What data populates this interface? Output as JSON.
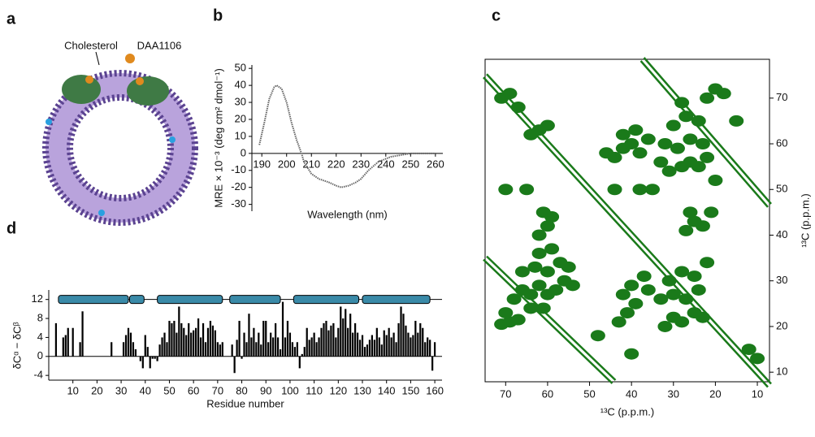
{
  "illustration": {
    "panel": "a",
    "labels": [
      "Cholesterol",
      "DAA1106"
    ]
  },
  "chart_data": [
    {
      "type": "line",
      "panel": "b",
      "xlabel": "Wavelength (nm)",
      "ylabel": "MRE × 10⁻³ (deg cm² dmol⁻¹)",
      "x": [
        189,
        191,
        193,
        195,
        196,
        198,
        200,
        202,
        204,
        206,
        207,
        210,
        213,
        217,
        220,
        222,
        225,
        228,
        230,
        233,
        237,
        242,
        250,
        255,
        260
      ],
      "values": [
        5,
        18,
        32,
        39,
        40,
        38,
        30,
        18,
        8,
        0,
        -5,
        -12,
        -15,
        -17,
        -19,
        -20,
        -19,
        -17,
        -15,
        -10,
        -5,
        -2,
        0,
        0,
        0
      ],
      "color": "#666666",
      "xlim": [
        186,
        263
      ],
      "ylim": [
        -34,
        52
      ],
      "xticks": [
        190,
        200,
        210,
        220,
        230,
        240,
        250,
        260
      ],
      "yticks": [
        -30,
        -20,
        -10,
        0,
        10,
        20,
        30,
        40,
        50
      ]
    },
    {
      "type": "scatter",
      "panel": "c",
      "xlabel": "¹³C (p.p.m.)",
      "ylabel": "¹³C (p.p.m.)",
      "color": "#1a7a1a",
      "xlim": [
        74.9,
        7.1
      ],
      "ylim": [
        7.9,
        78.5
      ],
      "xticks": [
        70,
        60,
        50,
        40,
        30,
        20,
        10
      ],
      "yticks": [
        10,
        20,
        30,
        40,
        50,
        60,
        70
      ],
      "x": [
        71,
        69,
        67,
        70,
        68,
        66,
        64,
        62,
        60,
        58,
        56,
        54,
        66,
        63,
        60,
        57,
        55,
        62,
        59,
        64,
        61,
        62,
        60,
        59,
        61,
        43,
        41,
        39,
        42,
        40,
        36,
        37,
        32,
        30,
        28,
        25,
        23,
        33,
        30,
        27,
        24,
        31,
        28,
        25,
        22,
        27,
        25,
        23,
        21,
        26,
        46,
        44,
        42,
        40,
        38,
        42,
        39,
        36,
        33,
        31,
        28,
        26,
        24,
        22,
        32,
        29,
        26,
        23,
        30,
        27,
        24,
        28,
        71,
        69,
        67,
        22,
        20,
        18,
        64,
        62,
        60,
        12,
        10,
        20,
        35,
        15,
        40,
        48,
        70,
        65,
        44,
        38
      ],
      "values": [
        20.5,
        21,
        21.5,
        23,
        26,
        28,
        27,
        29,
        27,
        28,
        30,
        29,
        32,
        33,
        32,
        34,
        33,
        36,
        37,
        24,
        24,
        40,
        42,
        44,
        45,
        21,
        23,
        25,
        27,
        29,
        28,
        31,
        20,
        22,
        21,
        23,
        22,
        26,
        27,
        26,
        28,
        30,
        32,
        31,
        34,
        41,
        43,
        42,
        45,
        45,
        58,
        57,
        59,
        60,
        58,
        62,
        63,
        61,
        56,
        54,
        55,
        56,
        55,
        57,
        60,
        59,
        61,
        60,
        64,
        66,
        65,
        69,
        70,
        71,
        68,
        70,
        72,
        71,
        62,
        63,
        64,
        15,
        13,
        52,
        50,
        65,
        14,
        18,
        50,
        50,
        50,
        50
      ],
      "lines": [
        {
          "x": [
            74.9,
            7.1
          ],
          "values": [
            74.9,
            7.1
          ]
        },
        {
          "x": [
            74.9,
            44.2
          ],
          "values": [
            35,
            7.9
          ]
        },
        {
          "x": [
            37.4,
            7.1
          ],
          "values": [
            78.5,
            46.5
          ]
        }
      ]
    },
    {
      "type": "bar",
      "panel": "d",
      "xlabel": "Residue number",
      "ylabel": "δCᵅ − δCᵝ",
      "color": "#000000",
      "helix_color": "#3a8aa8",
      "xlim": [
        0,
        163
      ],
      "ylim": [
        -5,
        14
      ],
      "xticks": [
        10,
        20,
        30,
        40,
        50,
        60,
        70,
        80,
        90,
        100,
        110,
        120,
        130,
        140,
        150,
        160
      ],
      "yticks": [
        -4,
        0,
        4,
        8,
        12
      ],
      "helices": [
        {
          "start": 4,
          "end": 33
        },
        {
          "start": 33.5,
          "end": 39.5
        },
        {
          "start": 45,
          "end": 72
        },
        {
          "start": 75,
          "end": 96
        },
        {
          "start": 101.5,
          "end": 128.5
        },
        {
          "start": 130,
          "end": 158
        }
      ],
      "x": [
        1,
        2,
        3,
        4,
        5,
        6,
        7,
        8,
        9,
        10,
        11,
        12,
        13,
        14,
        15,
        16,
        17,
        18,
        19,
        20,
        21,
        22,
        23,
        24,
        25,
        26,
        27,
        28,
        29,
        30,
        31,
        32,
        33,
        34,
        35,
        36,
        37,
        38,
        39,
        40,
        41,
        42,
        43,
        44,
        45,
        46,
        47,
        48,
        49,
        50,
        51,
        52,
        53,
        54,
        55,
        56,
        57,
        58,
        59,
        60,
        61,
        62,
        63,
        64,
        65,
        66,
        67,
        68,
        69,
        70,
        71,
        72,
        73,
        74,
        75,
        76,
        77,
        78,
        79,
        80,
        81,
        82,
        83,
        84,
        85,
        86,
        87,
        88,
        89,
        90,
        91,
        92,
        93,
        94,
        95,
        96,
        97,
        98,
        99,
        100,
        101,
        102,
        103,
        104,
        105,
        106,
        107,
        108,
        109,
        110,
        111,
        112,
        113,
        114,
        115,
        116,
        117,
        118,
        119,
        120,
        121,
        122,
        123,
        124,
        125,
        126,
        127,
        128,
        129,
        130,
        131,
        132,
        133,
        134,
        135,
        136,
        137,
        138,
        139,
        140,
        141,
        142,
        143,
        144,
        145,
        146,
        147,
        148,
        149,
        150,
        151,
        152,
        153,
        154,
        155,
        156,
        157,
        158,
        159,
        160
      ],
      "values": [
        null,
        null,
        7,
        null,
        null,
        4,
        4.5,
        6,
        null,
        6,
        null,
        null,
        3,
        9.5,
        null,
        null,
        null,
        null,
        null,
        null,
        null,
        null,
        null,
        null,
        null,
        3,
        null,
        null,
        null,
        null,
        3,
        4.5,
        6,
        5,
        3,
        1.5,
        null,
        -1,
        -2.5,
        4.5,
        2,
        -2.5,
        -0.5,
        -0.5,
        -1,
        2.5,
        4,
        5,
        3,
        7.5,
        7,
        7.5,
        5,
        10.5,
        7,
        6,
        4.5,
        7,
        5,
        5.5,
        6,
        8,
        4,
        7,
        3,
        6,
        7.5,
        6.5,
        5.5,
        3,
        2.5,
        3,
        null,
        null,
        null,
        2.5,
        -3.5,
        3.5,
        7.5,
        -0.5,
        5,
        3,
        9,
        4,
        6,
        3,
        5,
        2.5,
        7.5,
        7.5,
        3,
        5,
        4,
        7,
        4,
        1.5,
        11.5,
        4,
        7.5,
        5,
        3,
        2,
        3,
        -2.5,
        0.5,
        2,
        6,
        3.5,
        4,
        5,
        3,
        4,
        6,
        7,
        7.5,
        5.5,
        6.5,
        7,
        4,
        6,
        10.5,
        8,
        10,
        6,
        9,
        5,
        7,
        5,
        3.5,
        4.5,
        2,
        2.5,
        3.5,
        4.5,
        3.5,
        6,
        4,
        2.5,
        5.5,
        4.5,
        6,
        4,
        5,
        3,
        7,
        10.5,
        9,
        6.5,
        5,
        4,
        4.5,
        7.5,
        5,
        7,
        6,
        3,
        4,
        3.5,
        -3,
        3
      ]
    }
  ]
}
